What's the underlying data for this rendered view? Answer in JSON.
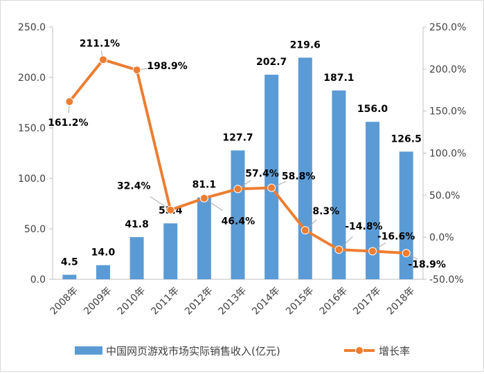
{
  "chart_data": {
    "type": "bar",
    "categories": [
      "2008年",
      "2009年",
      "2010年",
      "2011年",
      "2012年",
      "2013年",
      "2014年",
      "2015年",
      "2016年",
      "2017年",
      "2018年"
    ],
    "series": [
      {
        "name": "中国网页游戏市场实际销售收入(亿元)",
        "type": "bar",
        "axis": "left",
        "values": [
          4.5,
          14.0,
          41.8,
          55.4,
          81.1,
          127.7,
          202.7,
          219.6,
          187.1,
          156.0,
          126.5
        ],
        "labels": [
          "4.5",
          "14.0",
          "41.8",
          "55.4",
          "81.1",
          "127.7",
          "202.7",
          "219.6",
          "187.1",
          "156.0",
          "126.5"
        ],
        "color": "#5b9bd5"
      },
      {
        "name": "增长率",
        "type": "line",
        "axis": "right",
        "values": [
          161.2,
          211.1,
          198.9,
          32.4,
          46.4,
          57.4,
          58.8,
          8.3,
          -14.8,
          -16.6,
          -18.9
        ],
        "labels": [
          "161.2%",
          "211.1%",
          "198.9%",
          "32.4%",
          "46.4%",
          "57.4%",
          "58.8%",
          "8.3%",
          "-14.8%",
          "-16.6%",
          "-18.9%"
        ],
        "color": "#ed7d31"
      }
    ],
    "y_left": {
      "min": 0,
      "max": 250,
      "ticks": [
        "0.0",
        "50.0",
        "100.0",
        "150.0",
        "200.0",
        "250.0"
      ]
    },
    "y_right": {
      "min": -50,
      "max": 250,
      "ticks": [
        "-50.0%",
        "0.0%",
        "50.0%",
        "100.0%",
        "150.0%",
        "200.0%",
        "250.0%"
      ]
    },
    "grid": false,
    "legend": "bottom"
  }
}
